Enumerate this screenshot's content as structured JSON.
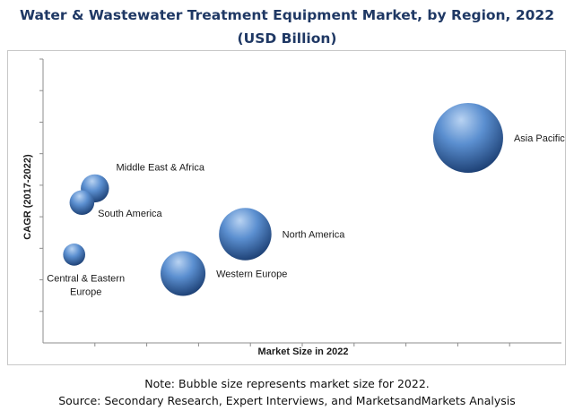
{
  "title": {
    "line1": "Water & Wastewater Treatment Equipment Market, by Region, 2022",
    "line2": "(USD Billion)"
  },
  "note": "Note: Bubble size represents market size for 2022.",
  "source": "Source: Secondary Research, Expert Interviews, and MarketsandMarkets Analysis",
  "colors": {
    "bubble_light": "#b9d3f2",
    "bubble_mid": "#5b8fd0",
    "bubble_dark": "#1c3f73",
    "axis": "#8c8c8c"
  },
  "chart_data": {
    "type": "scatter",
    "title": "Water & Wastewater Treatment Equipment Market, by Region, 2022 (USD Billion)",
    "xlabel": "Market Size in 2022",
    "ylabel": "CAGR (2017-2022)",
    "xlim": [
      0,
      10
    ],
    "ylim": [
      0,
      9
    ],
    "grid": false,
    "legend": "none",
    "points": [
      {
        "name": "Asia Pacific",
        "label_lines": [
          "Asia Pacific"
        ],
        "x": 8.2,
        "y": 6.5,
        "size": 8.0,
        "label_side": "right"
      },
      {
        "name": "Middle East & Africa",
        "label_lines": [
          "Middle East & Africa"
        ],
        "x": 1.0,
        "y": 4.9,
        "size": 1.3,
        "label_side": "upper-right"
      },
      {
        "name": "South America",
        "label_lines": [
          "South America"
        ],
        "x": 0.75,
        "y": 4.45,
        "size": 1.0,
        "label_side": "lower-right"
      },
      {
        "name": "North America",
        "label_lines": [
          "North America"
        ],
        "x": 3.9,
        "y": 3.45,
        "size": 4.5,
        "label_side": "right"
      },
      {
        "name": "Central & Eastern Europe",
        "label_lines": [
          "Central & Eastern",
          "Europe"
        ],
        "x": 0.6,
        "y": 2.8,
        "size": 0.8,
        "label_side": "below"
      },
      {
        "name": "Western Europe",
        "label_lines": [
          "Western Europe"
        ],
        "x": 2.7,
        "y": 2.2,
        "size": 3.3,
        "label_side": "right"
      }
    ]
  }
}
